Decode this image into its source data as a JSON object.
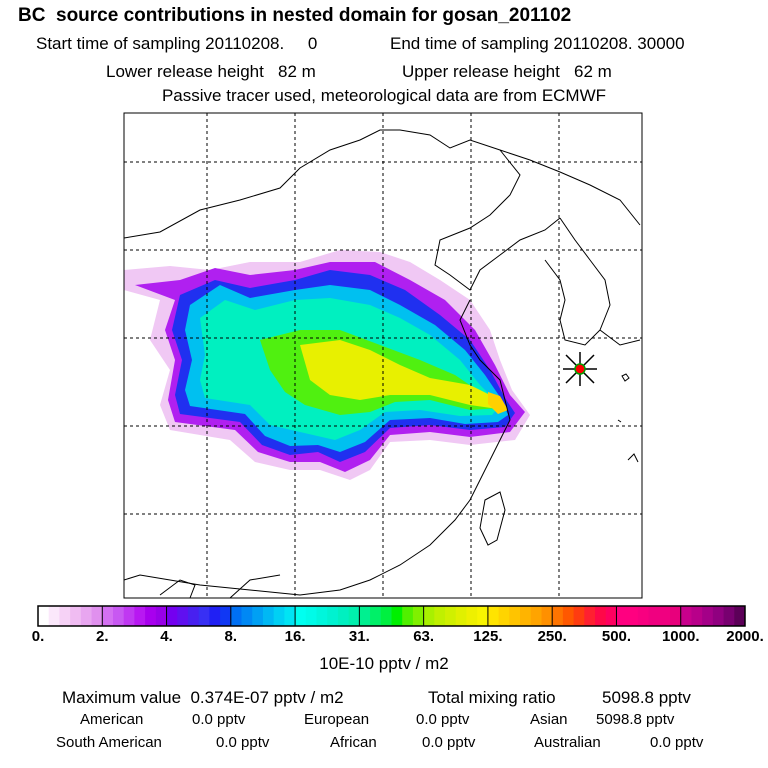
{
  "header": {
    "title": "BC  source contributions in nested domain for gosan_201102",
    "start_label": "Start time of sampling 20110208.     0",
    "end_label": "End time of sampling 20110208. 30000",
    "lower_label": "Lower release height   82 m",
    "upper_label": "Upper release height   62 m",
    "tracer_note": "Passive tracer used, meteorological data are from ECMWF"
  },
  "chart_data": {
    "type": "heatmap",
    "title": "BC  source contributions in nested domain for gosan_201102",
    "colorbar": {
      "ticks": [
        "0.",
        "2.",
        "4.",
        "8.",
        "16.",
        "31.",
        "63.",
        "125.",
        "250.",
        "500.",
        "1000.",
        "2000."
      ],
      "unit_label": "10E-10 pptv / m2",
      "colors": [
        [
          "#ffffff",
          "#fbe8fb",
          "#f6d2f6",
          "#f0bcf2",
          "#e8a6f0",
          "#e090ee"
        ],
        [
          "#d470f2",
          "#c858f2",
          "#c038f2",
          "#b818f2",
          "#a800ee",
          "#9800e8"
        ],
        [
          "#7400f0",
          "#6010f0",
          "#4820f0",
          "#3830f4",
          "#2020f4",
          "#1038f4"
        ],
        [
          "#0070f4",
          "#0088f4",
          "#00a0f4",
          "#00b8f4",
          "#00d0f4",
          "#00e4f4"
        ],
        [
          "#00fff0",
          "#00fbe8",
          "#00f6dc",
          "#00f2d0",
          "#00f0c0",
          "#00f0ae"
        ],
        [
          "#00f090",
          "#00f068",
          "#00f040",
          "#00f000",
          "#50f000",
          "#80f000"
        ],
        [
          "#a8f000",
          "#c0f000",
          "#d0f000",
          "#e0f000",
          "#eef000",
          "#f8f400"
        ],
        [
          "#ffe400",
          "#ffd400",
          "#ffc400",
          "#ffb400",
          "#ffa400",
          "#ff9000"
        ],
        [
          "#ff7400",
          "#ff5800",
          "#ff3c10",
          "#ff2030",
          "#ff0848",
          "#ff0060"
        ],
        [
          "#ff0080",
          "#ff0080",
          "#f80080",
          "#f00080",
          "#f00080",
          "#e8007c"
        ],
        [
          "#c8008c",
          "#b8008a",
          "#a40088",
          "#900080",
          "#780070",
          "#5c0058"
        ]
      ]
    },
    "plume_levels": [
      "0-2",
      "2-4",
      "4-8",
      "8-16",
      "16-31",
      "31-63",
      "63-125"
    ],
    "receptor": "gosan"
  },
  "stats": {
    "max_label": "Maximum value  0.374E-07 pptv / m2",
    "total_label": "Total mixing ratio",
    "total_value": "5098.8 pptv",
    "regions": [
      {
        "name": "American",
        "value": "0.0 pptv"
      },
      {
        "name": "European",
        "value": "0.0 pptv"
      },
      {
        "name": "Asian",
        "value": "5098.8 pptv"
      },
      {
        "name": "South American",
        "value": "0.0 pptv"
      },
      {
        "name": "African",
        "value": "0.0 pptv"
      },
      {
        "name": "Australian",
        "value": "0.0 pptv"
      }
    ]
  }
}
